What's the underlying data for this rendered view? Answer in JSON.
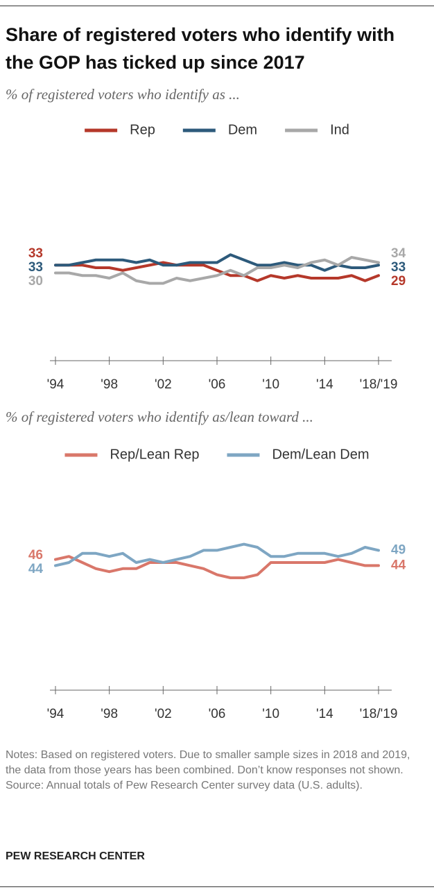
{
  "title": "Share of registered voters who identify with the GOP has ticked up since 2017",
  "chart_data": [
    {
      "type": "line",
      "subtitle": "% of registered voters who identify as ...",
      "categories": [
        "'94",
        null,
        null,
        null,
        "'98",
        null,
        null,
        null,
        "'02",
        null,
        null,
        null,
        "'06",
        null,
        null,
        null,
        "'10",
        null,
        null,
        null,
        "'14",
        null,
        null,
        null,
        "'18/'19"
      ],
      "series": [
        {
          "name": "Rep",
          "color": "#b5382a",
          "values": [
            33,
            33,
            33,
            32,
            32,
            31,
            32,
            33,
            34,
            33,
            33,
            33,
            31,
            29,
            29,
            27,
            29,
            28,
            29,
            28,
            28,
            28,
            29,
            27,
            29
          ]
        },
        {
          "name": "Dem",
          "color": "#2d5a7b",
          "values": [
            33,
            33,
            34,
            35,
            35,
            35,
            34,
            35,
            33,
            33,
            34,
            34,
            34,
            37,
            35,
            33,
            33,
            34,
            33,
            33,
            31,
            33,
            32,
            32,
            33
          ]
        },
        {
          "name": "Ind",
          "color": "#a8a8a8",
          "values": [
            30,
            30,
            29,
            29,
            28,
            30,
            27,
            26,
            26,
            28,
            27,
            28,
            29,
            31,
            29,
            32,
            32,
            33,
            32,
            34,
            35,
            33,
            36,
            35,
            34
          ]
        }
      ],
      "ylim": [
        0,
        80
      ],
      "legend": "top"
    },
    {
      "type": "line",
      "subtitle": "% of registered voters who identify as/lean toward ...",
      "categories": [
        "'94",
        null,
        null,
        null,
        "'98",
        null,
        null,
        null,
        "'02",
        null,
        null,
        null,
        "'06",
        null,
        null,
        null,
        "'10",
        null,
        null,
        null,
        "'14",
        null,
        null,
        null,
        "'18/'19"
      ],
      "series": [
        {
          "name": "Rep/Lean Rep",
          "color": "#d9776a",
          "values": [
            46,
            47,
            45,
            43,
            42,
            43,
            43,
            45,
            45,
            45,
            44,
            43,
            41,
            40,
            40,
            41,
            45,
            45,
            45,
            45,
            45,
            46,
            45,
            44,
            44
          ]
        },
        {
          "name": "Dem/Lean Dem",
          "color": "#7ea6c3",
          "values": [
            44,
            45,
            48,
            48,
            47,
            48,
            45,
            46,
            45,
            46,
            47,
            49,
            49,
            50,
            51,
            50,
            47,
            47,
            48,
            48,
            48,
            47,
            48,
            50,
            49
          ]
        }
      ],
      "ylim": [
        10,
        70
      ],
      "legend": "top"
    }
  ],
  "notes": "Notes: Based on registered voters. Due to smaller sample sizes in 2018 and 2019, the data from those years has been combined. Don’t know responses not shown.",
  "source": "Source: Annual totals of Pew Research Center survey data (U.S. adults).",
  "footer": "PEW RESEARCH CENTER"
}
